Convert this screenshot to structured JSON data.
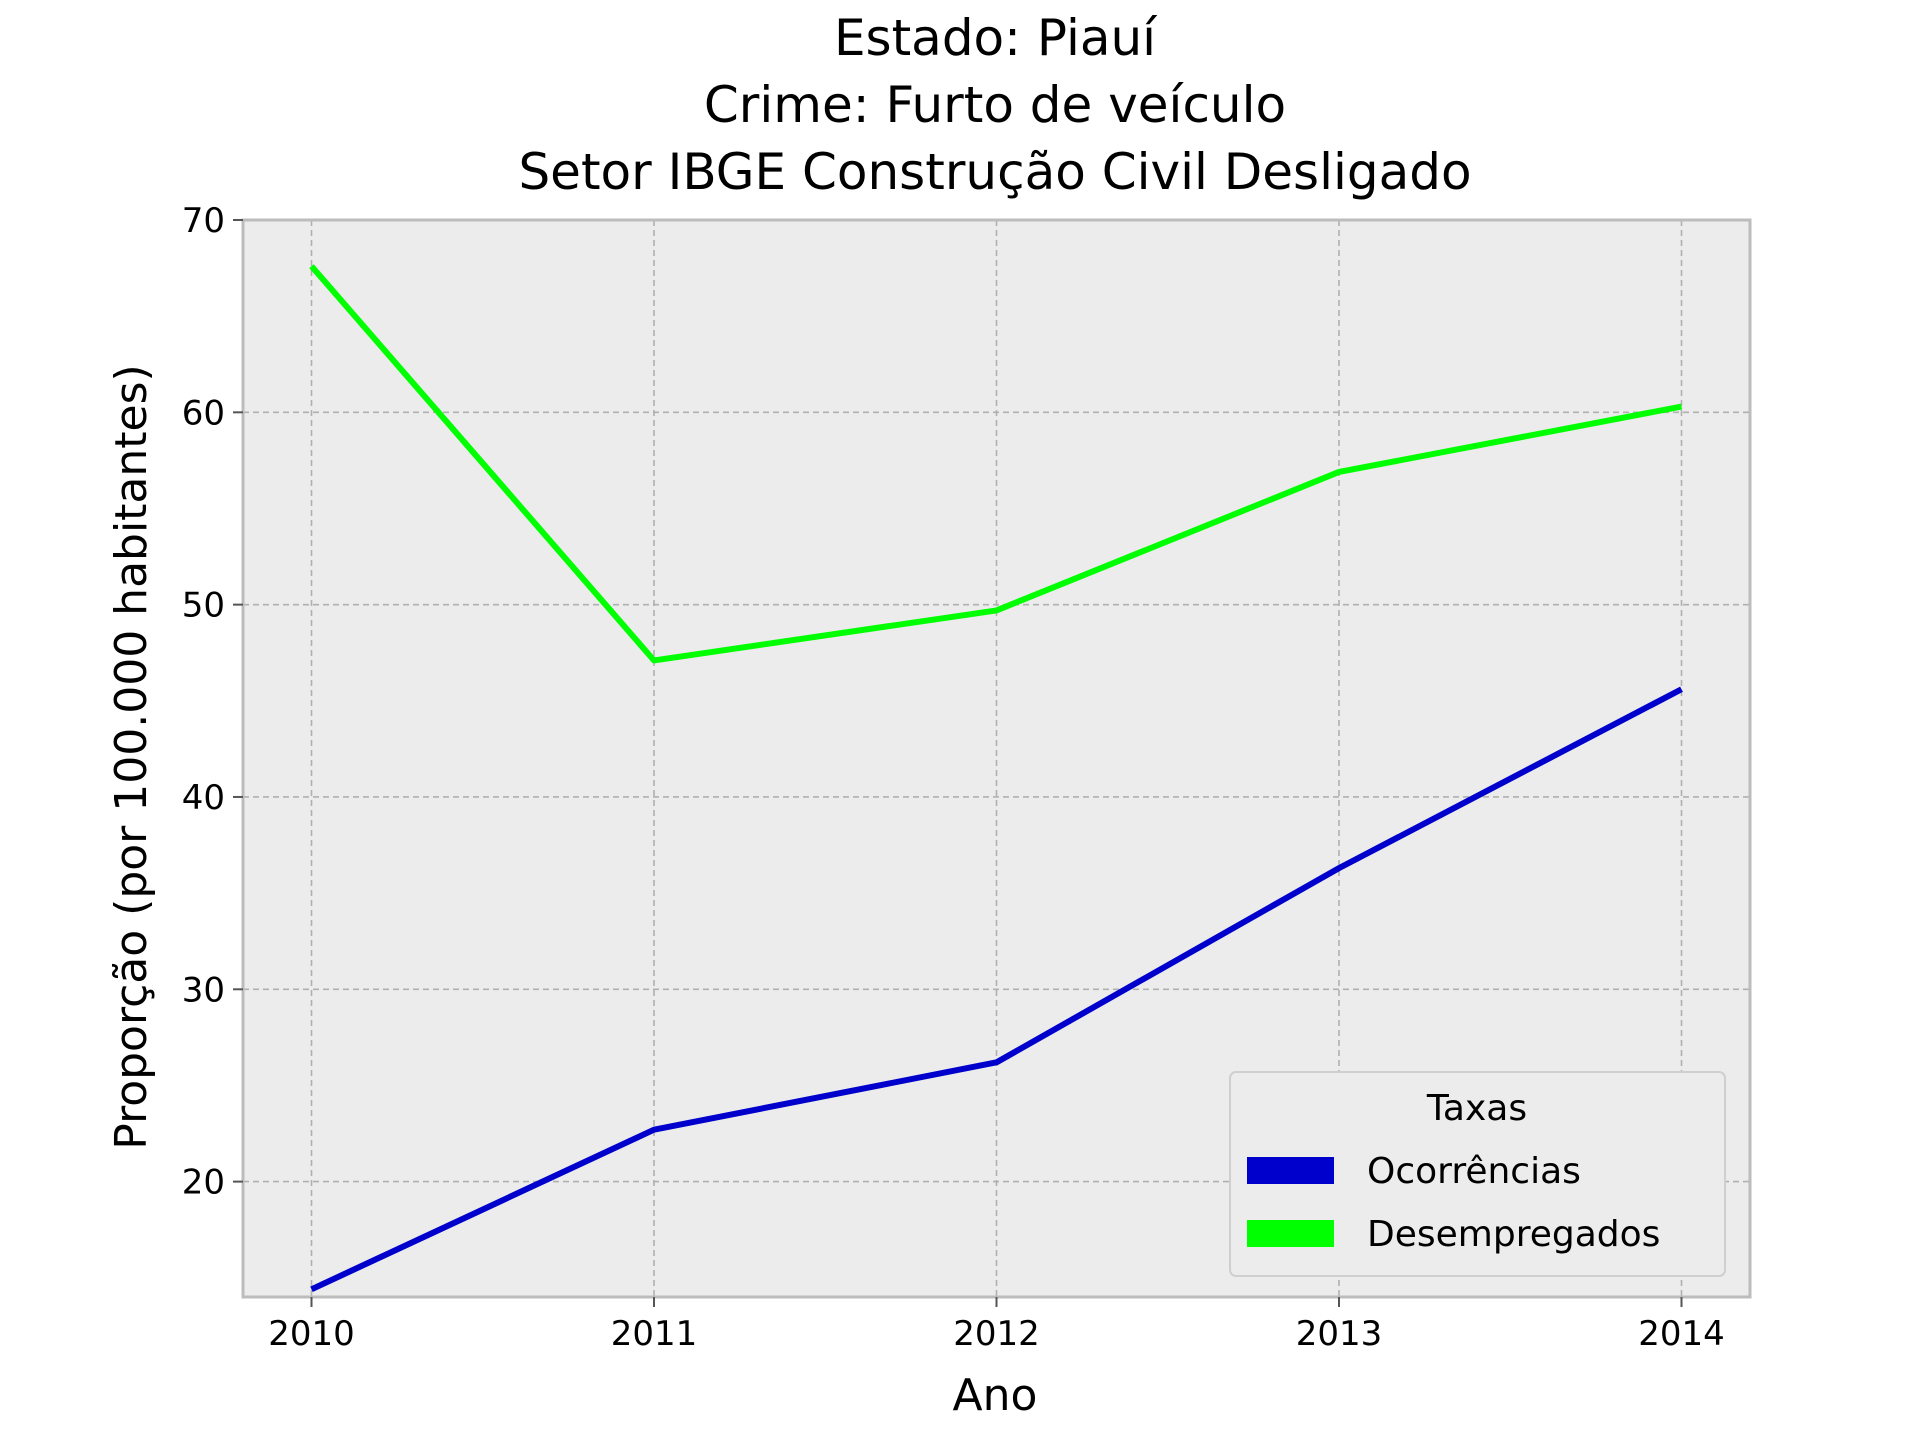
{
  "chart_data": {
    "type": "line",
    "title_lines": [
      "Estado: Piauí",
      "Crime: Furto de veículo",
      "Setor IBGE  Construção Civil   Desligado"
    ],
    "xlabel": "Ano",
    "ylabel": "Proporção (por 100.000 habitantes)",
    "x": [
      2010,
      2011,
      2012,
      2013,
      2014
    ],
    "x_tick_labels": [
      "2010",
      "2011",
      "2012",
      "2013",
      "2014"
    ],
    "y_ticks": [
      20,
      30,
      40,
      50,
      60,
      70
    ],
    "y_tick_labels": [
      "20",
      "30",
      "40",
      "50",
      "60",
      "70"
    ],
    "ylim": [
      14.0,
      70.0
    ],
    "xlim": [
      2009.8,
      2014.2
    ],
    "grid": true,
    "legend": {
      "title": "Taxas",
      "placement": "bottom-right"
    },
    "series": [
      {
        "name": "Ocorrências",
        "color": "#0000cc",
        "values": [
          14.4,
          22.7,
          26.2,
          36.3,
          45.6
        ]
      },
      {
        "name": "Desempregados",
        "color": "#00ff00",
        "values": [
          67.6,
          47.1,
          49.7,
          56.9,
          60.3
        ]
      }
    ],
    "colors": {
      "plot_background": "#ececec",
      "grid": "#b0b0b0",
      "frame": "#bcbcbc"
    }
  }
}
